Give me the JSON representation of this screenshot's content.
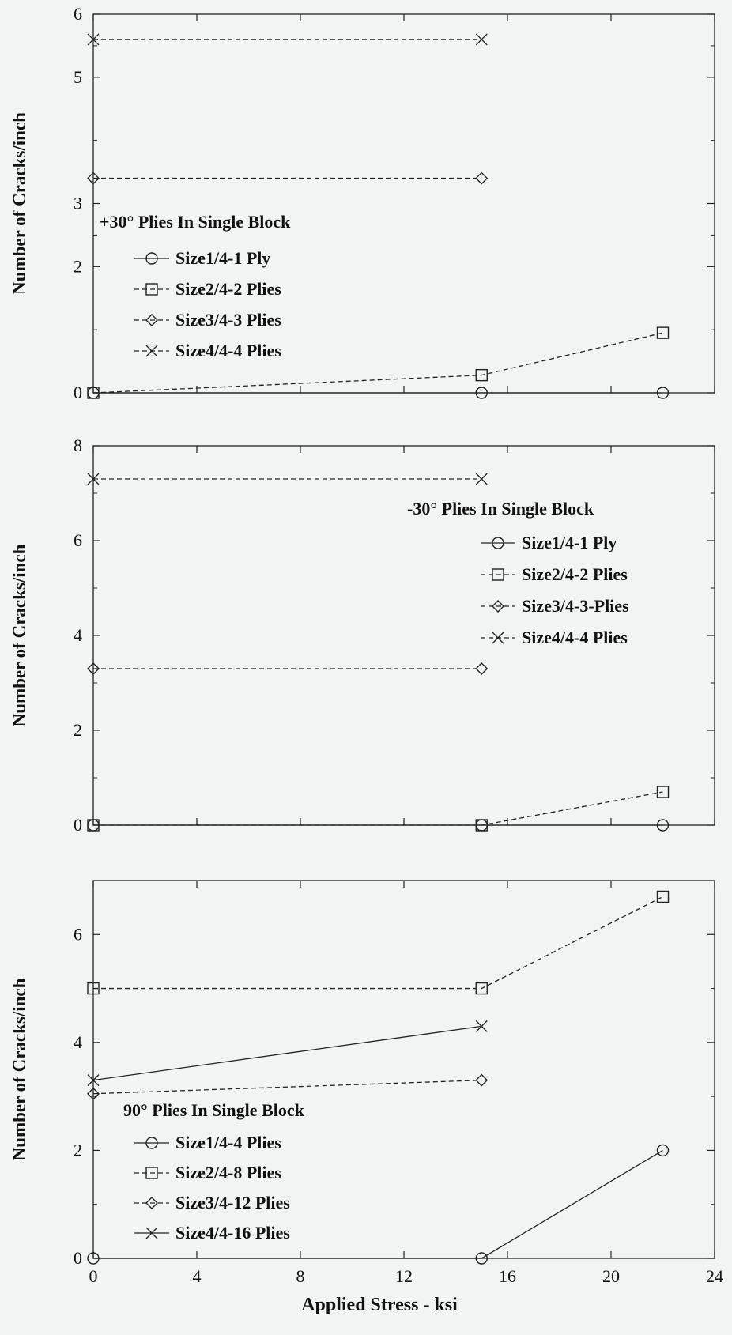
{
  "chart_data": [
    {
      "type": "line",
      "ylabel": "Number of Cracks/inch",
      "legend_title": "+30° Plies In Single Block",
      "legend_placement": "left-middle",
      "ylim": [
        0,
        6
      ],
      "yticks": [
        0,
        2,
        3,
        5,
        6
      ],
      "ytick_labels": [
        "0",
        "2",
        "3",
        "5",
        "6"
      ],
      "xlim": [
        0,
        24
      ],
      "grid": false,
      "series": [
        {
          "name": "Size1/4-1 Ply",
          "marker": "circle",
          "dash": "solid",
          "x": [
            0,
            15,
            22
          ],
          "y": [
            0,
            0,
            0
          ]
        },
        {
          "name": "Size2/4-2 Plies",
          "marker": "square",
          "dash": "dashed",
          "x": [
            0,
            15,
            22
          ],
          "y": [
            0,
            0.28,
            0.95
          ]
        },
        {
          "name": "Size3/4-3 Plies",
          "marker": "diamond",
          "dash": "dashed",
          "x": [
            0,
            15
          ],
          "y": [
            3.4,
            3.4
          ]
        },
        {
          "name": "Size4/4-4 Plies",
          "marker": "x",
          "dash": "dashed",
          "x": [
            0,
            15
          ],
          "y": [
            5.6,
            5.6
          ]
        }
      ]
    },
    {
      "type": "line",
      "ylabel": "Number of Cracks/inch",
      "legend_title": "-30° Plies In Single Block",
      "legend_placement": "right-upper",
      "ylim": [
        0,
        8
      ],
      "yticks": [
        0,
        2,
        4,
        6,
        8
      ],
      "ytick_labels": [
        "0",
        "2",
        "4",
        "6",
        "8"
      ],
      "xlim": [
        0,
        24
      ],
      "grid": false,
      "series": [
        {
          "name": "Size1/4-1 Ply",
          "marker": "circle",
          "dash": "solid",
          "x": [
            0,
            15,
            22
          ],
          "y": [
            0,
            0,
            0
          ]
        },
        {
          "name": "Size2/4-2 Plies",
          "marker": "square",
          "dash": "dashed",
          "x": [
            0,
            15,
            22
          ],
          "y": [
            0,
            0,
            0.7
          ]
        },
        {
          "name": "Size3/4-3-Plies",
          "marker": "diamond",
          "dash": "dashed",
          "x": [
            0,
            15
          ],
          "y": [
            3.3,
            3.3
          ]
        },
        {
          "name": "Size4/4-4 Plies",
          "marker": "x",
          "dash": "dashed",
          "x": [
            0,
            15
          ],
          "y": [
            7.3,
            7.3
          ]
        }
      ]
    },
    {
      "type": "line",
      "ylabel": "Number of Cracks/inch",
      "xlabel": "Applied Stress - ksi",
      "legend_title": "90° Plies In Single Block",
      "legend_placement": "left-lower",
      "ylim": [
        0,
        7
      ],
      "yticks": [
        0,
        2,
        4,
        6
      ],
      "ytick_labels": [
        "0",
        "2",
        "4",
        "6"
      ],
      "xlim": [
        0,
        24
      ],
      "xticks": [
        0,
        4,
        8,
        12,
        16,
        20,
        24
      ],
      "xtick_labels": [
        "0",
        "4",
        "8",
        "12",
        "16",
        "20",
        "24"
      ],
      "grid": false,
      "series": [
        {
          "name": "Size1/4-4 Plies",
          "marker": "circle",
          "dash": "solid",
          "x": [
            0,
            15,
            22
          ],
          "y": [
            0,
            0,
            2
          ]
        },
        {
          "name": "Size2/4-8 Plies",
          "marker": "square",
          "dash": "dashed",
          "x": [
            0,
            15,
            22
          ],
          "y": [
            5,
            5,
            6.7
          ]
        },
        {
          "name": "Size3/4-12 Plies",
          "marker": "diamond",
          "dash": "dashed",
          "x": [
            0,
            15
          ],
          "y": [
            3.05,
            3.3
          ]
        },
        {
          "name": "Size4/4-16 Plies",
          "marker": "x",
          "dash": "solid",
          "x": [
            0,
            15
          ],
          "y": [
            3.3,
            4.3
          ]
        }
      ]
    }
  ]
}
